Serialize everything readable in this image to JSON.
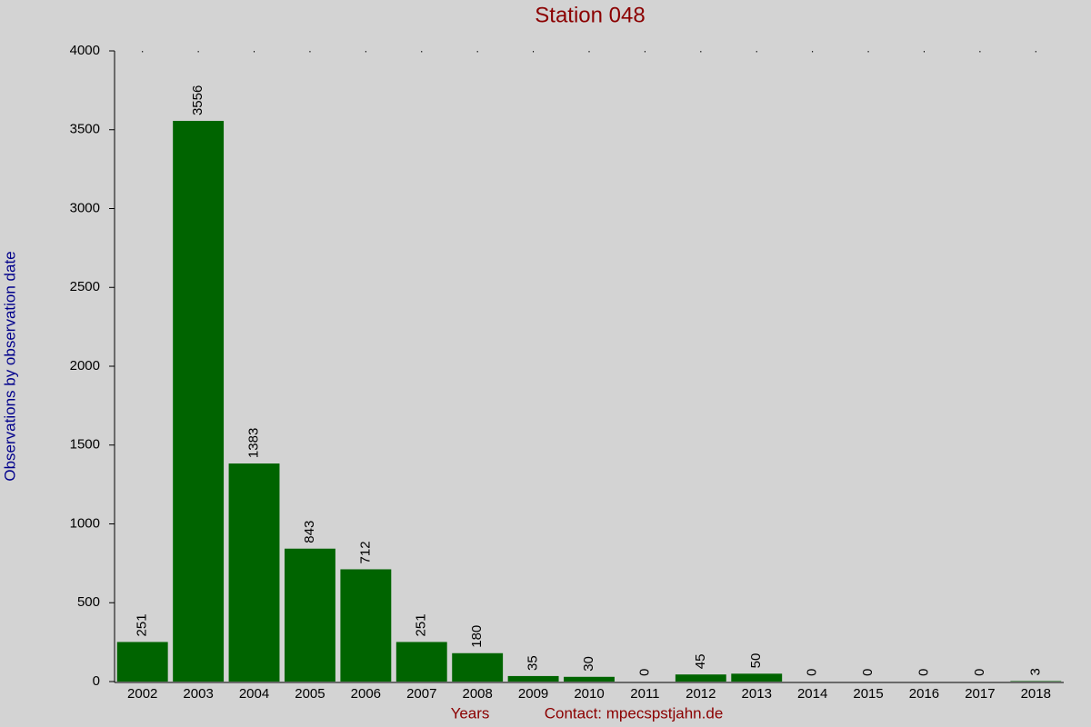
{
  "chart_data": {
    "type": "bar",
    "title": "Station 048",
    "ylabel": "Observations by observation date",
    "xlabel": "Years",
    "contact": "Contact: mpecspstjahn.de",
    "categories": [
      "2002",
      "2003",
      "2004",
      "2005",
      "2006",
      "2007",
      "2008",
      "2009",
      "2010",
      "2011",
      "2012",
      "2013",
      "2014",
      "2015",
      "2016",
      "2017",
      "2018"
    ],
    "values": [
      251,
      3556,
      1383,
      843,
      712,
      251,
      180,
      35,
      30,
      0,
      45,
      50,
      0,
      0,
      0,
      0,
      3
    ],
    "color": "#006400",
    "ylim": [
      0,
      4000
    ],
    "yticks": [
      0,
      500,
      1000,
      1500,
      2000,
      2500,
      3000,
      3500,
      4000
    ],
    "grid": false
  }
}
